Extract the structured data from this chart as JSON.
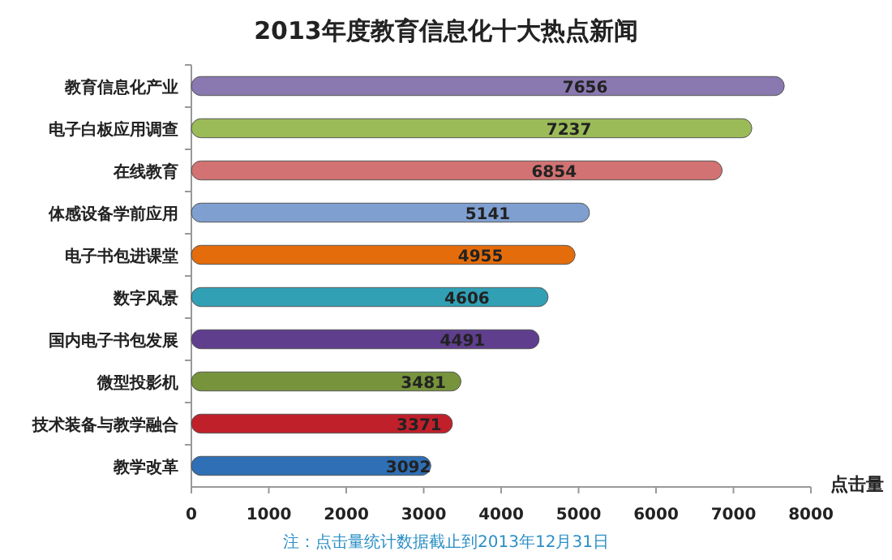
{
  "chart_data": {
    "type": "bar",
    "orientation": "horizontal",
    "title": "2013年度教育信息化十大热点新闻",
    "categories": [
      "教育信息化产业",
      "电子白板应用调查",
      "在线教育",
      "体感设备学前应用",
      "电子书包进课堂",
      "数字风景",
      "国内电子书包发展",
      "微型投影机",
      "技术装备与教学融合",
      "教学改革"
    ],
    "values": [
      7656,
      7237,
      6854,
      5141,
      4955,
      4606,
      4491,
      3481,
      3371,
      3092
    ],
    "colors": [
      "#8a78b0",
      "#9bbb59",
      "#d27272",
      "#7f9fd0",
      "#e46c0a",
      "#31a0b5",
      "#5f3e8e",
      "#77933c",
      "#c0202a",
      "#2e6fb5"
    ],
    "xlim": [
      0,
      8000
    ],
    "xticks": [
      0,
      1000,
      2000,
      3000,
      4000,
      5000,
      6000,
      7000,
      8000
    ],
    "xlabel": "点击量",
    "data_labels": true,
    "grid": false,
    "annotations": [
      "注：点击量统计数据截止到2013年12月31日"
    ]
  }
}
